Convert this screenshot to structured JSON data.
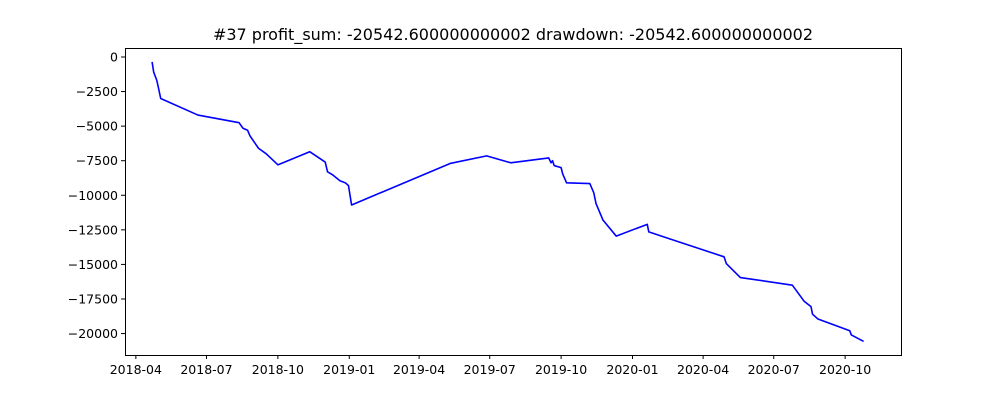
{
  "chart_data": {
    "type": "line",
    "title": "#37   profit_sum: -20542.600000000002 drawdown: -20542.600000000002",
    "xlabel": "",
    "ylabel": "",
    "grid": false,
    "line_color": "#0000ff",
    "x_axis_type": "date",
    "xlim": [
      "2018-03-18",
      "2020-12-12"
    ],
    "ylim": [
      -21550,
      650
    ],
    "y_ticks": [
      0,
      -2500,
      -5000,
      -7500,
      -10000,
      -12500,
      -15000,
      -17500,
      -20000
    ],
    "y_tick_labels": [
      "0",
      "−2500",
      "−5000",
      "−7500",
      "−10000",
      "−12500",
      "−15000",
      "−17500",
      "−20000"
    ],
    "x_ticks": [
      "2018-04-01",
      "2018-07-01",
      "2018-10-01",
      "2019-01-01",
      "2019-04-01",
      "2019-07-01",
      "2019-10-01",
      "2020-01-01",
      "2020-04-01",
      "2020-07-01",
      "2020-10-01"
    ],
    "x_tick_labels": [
      "2018-04",
      "2018-07",
      "2018-10",
      "2019-01",
      "2019-04",
      "2019-07",
      "2019-10",
      "2020-01",
      "2020-04",
      "2020-07",
      "2020-10"
    ],
    "series": [
      {
        "x": [
          "2018-04-22",
          "2018-04-24",
          "2018-04-28",
          "2018-04-30",
          "2018-05-03",
          "2018-06-20",
          "2018-08-12",
          "2018-08-17",
          "2018-08-23",
          "2018-08-26",
          "2018-09-06",
          "2018-09-16",
          "2018-10-01",
          "2018-11-11",
          "2018-12-01",
          "2018-12-04",
          "2018-12-10",
          "2018-12-20",
          "2018-12-27",
          "2018-12-31",
          "2019-01-04",
          "2019-05-11",
          "2019-06-27",
          "2019-07-28",
          "2019-09-15",
          "2019-09-18",
          "2019-09-20",
          "2019-09-22",
          "2019-10-01",
          "2019-10-03",
          "2019-10-08",
          "2019-11-07",
          "2019-11-12",
          "2019-11-15",
          "2019-11-24",
          "2019-12-11",
          "2020-01-20",
          "2020-01-22",
          "2020-02-18",
          "2020-04-28",
          "2020-05-01",
          "2020-05-19",
          "2020-07-25",
          "2020-08-09",
          "2020-08-18",
          "2020-08-20",
          "2020-08-27",
          "2020-10-07",
          "2020-10-09",
          "2020-10-24"
        ],
        "values": [
          -400,
          -1100,
          -1700,
          -2200,
          -3000,
          -4200,
          -4750,
          -5150,
          -5300,
          -5700,
          -6600,
          -7000,
          -7800,
          -6850,
          -7600,
          -8300,
          -8500,
          -8950,
          -9100,
          -9300,
          -10700,
          -7700,
          -7150,
          -7650,
          -7300,
          -7650,
          -7500,
          -7850,
          -8000,
          -8450,
          -9100,
          -9150,
          -9800,
          -10600,
          -11800,
          -12950,
          -12100,
          -12650,
          -13150,
          -14450,
          -14950,
          -15950,
          -16500,
          -17650,
          -18050,
          -18600,
          -18950,
          -19800,
          -20100,
          -20542.6
        ]
      }
    ]
  }
}
